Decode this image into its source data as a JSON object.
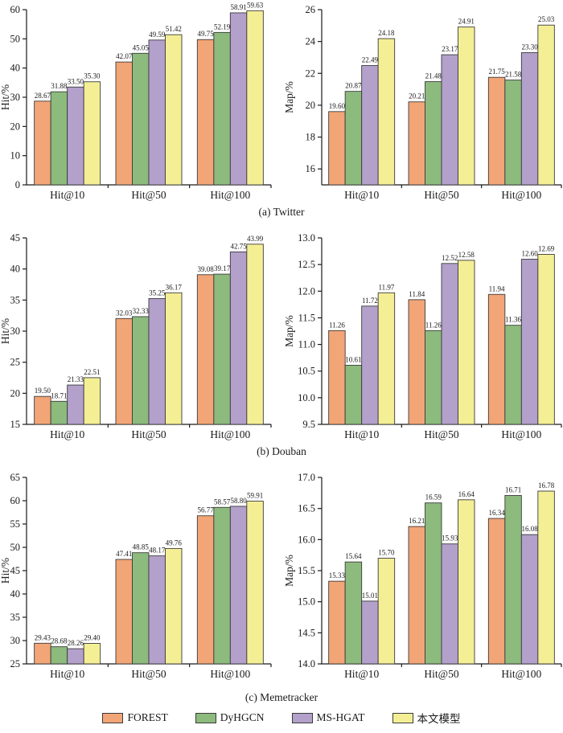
{
  "figure": {
    "legend_position": "bottom",
    "captions": [
      {
        "label": "(a) Twitter"
      },
      {
        "label": "(b) Douban"
      },
      {
        "label": "(c) Memetracker"
      }
    ],
    "legend": {
      "border_color": "#3b3b3b",
      "items": [
        {
          "label": "FOREST",
          "color": "#F2A576"
        },
        {
          "label": "DyHGCN",
          "color": "#8CBB7D"
        },
        {
          "label": "MS-HGAT",
          "color": "#B3A0CB"
        },
        {
          "label": "本文模型",
          "color": "#F4EF95"
        }
      ]
    }
  },
  "chart_data": [
    {
      "id": "twitter-hit",
      "type": "bar",
      "dataset": "Twitter",
      "ylabel": "Hit/%",
      "categories": [
        "Hit@10",
        "Hit@50",
        "Hit@100"
      ],
      "ylim": [
        0,
        60
      ],
      "yticks": [
        0,
        10,
        20,
        30,
        40,
        50,
        60
      ],
      "ytick_labels": [
        "0",
        "10",
        "20",
        "30",
        "40",
        "50",
        "60"
      ],
      "grid": false,
      "series": [
        {
          "name": "FOREST",
          "values": [
            28.67,
            42.07,
            49.75
          ]
        },
        {
          "name": "DyHGCN",
          "values": [
            31.88,
            45.05,
            52.19
          ]
        },
        {
          "name": "MS-HGAT",
          "values": [
            33.5,
            49.59,
            58.91
          ]
        },
        {
          "name": "本文模型",
          "values": [
            35.3,
            51.42,
            59.63
          ]
        }
      ]
    },
    {
      "id": "twitter-map",
      "type": "bar",
      "dataset": "Twitter",
      "ylabel": "Map/%",
      "categories": [
        "Hit@10",
        "Hit@50",
        "Hit@100"
      ],
      "ylim": [
        15,
        26
      ],
      "yticks": [
        16,
        18,
        20,
        22,
        24,
        26
      ],
      "ytick_labels": [
        "16",
        "18",
        "20",
        "22",
        "24",
        "26"
      ],
      "grid": false,
      "series": [
        {
          "name": "FOREST",
          "values": [
            19.6,
            20.21,
            21.75
          ]
        },
        {
          "name": "DyHGCN",
          "values": [
            20.87,
            21.48,
            21.58
          ]
        },
        {
          "name": "MS-HGAT",
          "values": [
            22.49,
            23.17,
            23.3
          ]
        },
        {
          "name": "本文模型",
          "values": [
            24.18,
            24.91,
            25.03
          ]
        }
      ]
    },
    {
      "id": "douban-hit",
      "type": "bar",
      "dataset": "Douban",
      "ylabel": "Hit/%",
      "categories": [
        "Hit@10",
        "Hit@50",
        "Hit@100"
      ],
      "ylim": [
        15,
        45
      ],
      "yticks": [
        15,
        20,
        25,
        30,
        35,
        40,
        45
      ],
      "ytick_labels": [
        "15",
        "20",
        "25",
        "30",
        "35",
        "40",
        "45"
      ],
      "grid": false,
      "series": [
        {
          "name": "FOREST",
          "values": [
            19.5,
            32.03,
            39.08
          ]
        },
        {
          "name": "DyHGCN",
          "values": [
            18.71,
            32.33,
            39.17
          ]
        },
        {
          "name": "MS-HGAT",
          "values": [
            21.33,
            35.25,
            42.75
          ]
        },
        {
          "name": "本文模型",
          "values": [
            22.51,
            36.17,
            43.99
          ]
        }
      ]
    },
    {
      "id": "douban-map",
      "type": "bar",
      "dataset": "Douban",
      "ylabel": "Map/%",
      "categories": [
        "Hit@10",
        "Hit@50",
        "Hit@100"
      ],
      "ylim": [
        9.5,
        13.0
      ],
      "yticks": [
        9.5,
        10.0,
        10.5,
        11.0,
        11.5,
        12.0,
        12.5,
        13.0
      ],
      "ytick_labels": [
        "9.5",
        "10.0",
        "10.5",
        "11.0",
        "11.5",
        "12.0",
        "12.5",
        "13.0"
      ],
      "grid": false,
      "series": [
        {
          "name": "FOREST",
          "values": [
            11.26,
            11.84,
            11.94
          ]
        },
        {
          "name": "DyHGCN",
          "values": [
            10.61,
            11.26,
            11.36
          ]
        },
        {
          "name": "MS-HGAT",
          "values": [
            11.72,
            12.52,
            12.6
          ]
        },
        {
          "name": "本文模型",
          "values": [
            11.97,
            12.58,
            12.69
          ]
        }
      ]
    },
    {
      "id": "memetracker-hit",
      "type": "bar",
      "dataset": "Memetracker",
      "ylabel": "Hit/%",
      "categories": [
        "Hit@10",
        "Hit@50",
        "Hit@100"
      ],
      "ylim": [
        25,
        65
      ],
      "yticks": [
        25,
        30,
        35,
        40,
        45,
        50,
        55,
        60,
        65
      ],
      "ytick_labels": [
        "25",
        "30",
        "35",
        "40",
        "45",
        "50",
        "55",
        "60",
        "65"
      ],
      "grid": false,
      "series": [
        {
          "name": "FOREST",
          "values": [
            29.43,
            47.41,
            56.77
          ]
        },
        {
          "name": "DyHGCN",
          "values": [
            28.68,
            48.85,
            58.57
          ]
        },
        {
          "name": "MS-HGAT",
          "values": [
            28.26,
            48.17,
            58.8
          ]
        },
        {
          "name": "本文模型",
          "values": [
            29.4,
            49.76,
            59.91
          ]
        }
      ]
    },
    {
      "id": "memetracker-map",
      "type": "bar",
      "dataset": "Memetracker",
      "ylabel": "Map/%",
      "categories": [
        "Hit@10",
        "Hit@50",
        "Hit@100"
      ],
      "ylim": [
        14.0,
        17.0
      ],
      "yticks": [
        14.0,
        14.5,
        15.0,
        15.5,
        16.0,
        16.5,
        17.0
      ],
      "ytick_labels": [
        "14.0",
        "14.5",
        "15.0",
        "15.5",
        "16.0",
        "16.5",
        "17.0"
      ],
      "grid": false,
      "series": [
        {
          "name": "FOREST",
          "values": [
            15.33,
            16.21,
            16.34
          ]
        },
        {
          "name": "DyHGCN",
          "values": [
            15.64,
            16.59,
            16.71
          ]
        },
        {
          "name": "MS-HGAT",
          "values": [
            15.01,
            15.93,
            16.08
          ]
        },
        {
          "name": "本文模型",
          "values": [
            15.7,
            16.64,
            16.78
          ]
        }
      ]
    }
  ]
}
